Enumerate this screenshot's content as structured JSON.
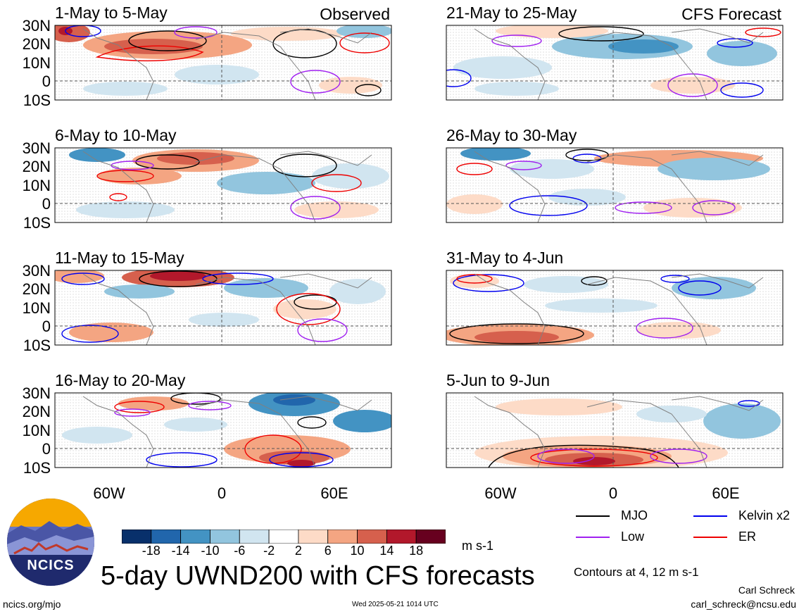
{
  "main_title": "5-day UWND200 with CFS forecasts",
  "units": "m s-1",
  "tags": {
    "left": "Observed",
    "right": "CFS Forecast"
  },
  "panels_left": [
    {
      "title": "1-May to 5-May"
    },
    {
      "title": "6-May to 10-May"
    },
    {
      "title": "11-May to 15-May"
    },
    {
      "title": "16-May to 20-May"
    }
  ],
  "panels_right": [
    {
      "title": "21-May to 25-May"
    },
    {
      "title": "26-May to 30-May"
    },
    {
      "title": "31-May to 4-Jun"
    },
    {
      "title": "5-Jun to 9-Jun"
    }
  ],
  "lat_labels": [
    "30N",
    "20N",
    "10N",
    "0",
    "10S"
  ],
  "lon_labels": [
    "60W",
    "0",
    "60E"
  ],
  "colorbar": {
    "ticks": [
      "-18",
      "-14",
      "-10",
      "-6",
      "-2",
      "2",
      "6",
      "10",
      "14",
      "18"
    ],
    "colors": [
      "#08306b",
      "#2166ac",
      "#4393c3",
      "#92c5de",
      "#d1e5f0",
      "#ffffff",
      "#fddbc7",
      "#f4a582",
      "#d6604d",
      "#b2182b",
      "#67001f"
    ]
  },
  "legend": [
    {
      "label": "MJO",
      "color": "#000000"
    },
    {
      "label": "Kelvin x2",
      "color": "#0000ee"
    },
    {
      "label": "Low",
      "color": "#a020f0"
    },
    {
      "label": "ER",
      "color": "#ee0000"
    }
  ],
  "contours_note": "Contours at 4, 12 m s-1",
  "footer": {
    "left": "ncics.org/mjo",
    "center": "Wed 2025-05-21 1014 UTC",
    "author": "Carl Schreck",
    "email": "carl_schreck@ncsu.edu"
  },
  "logo": {
    "text": "NCICS"
  }
}
